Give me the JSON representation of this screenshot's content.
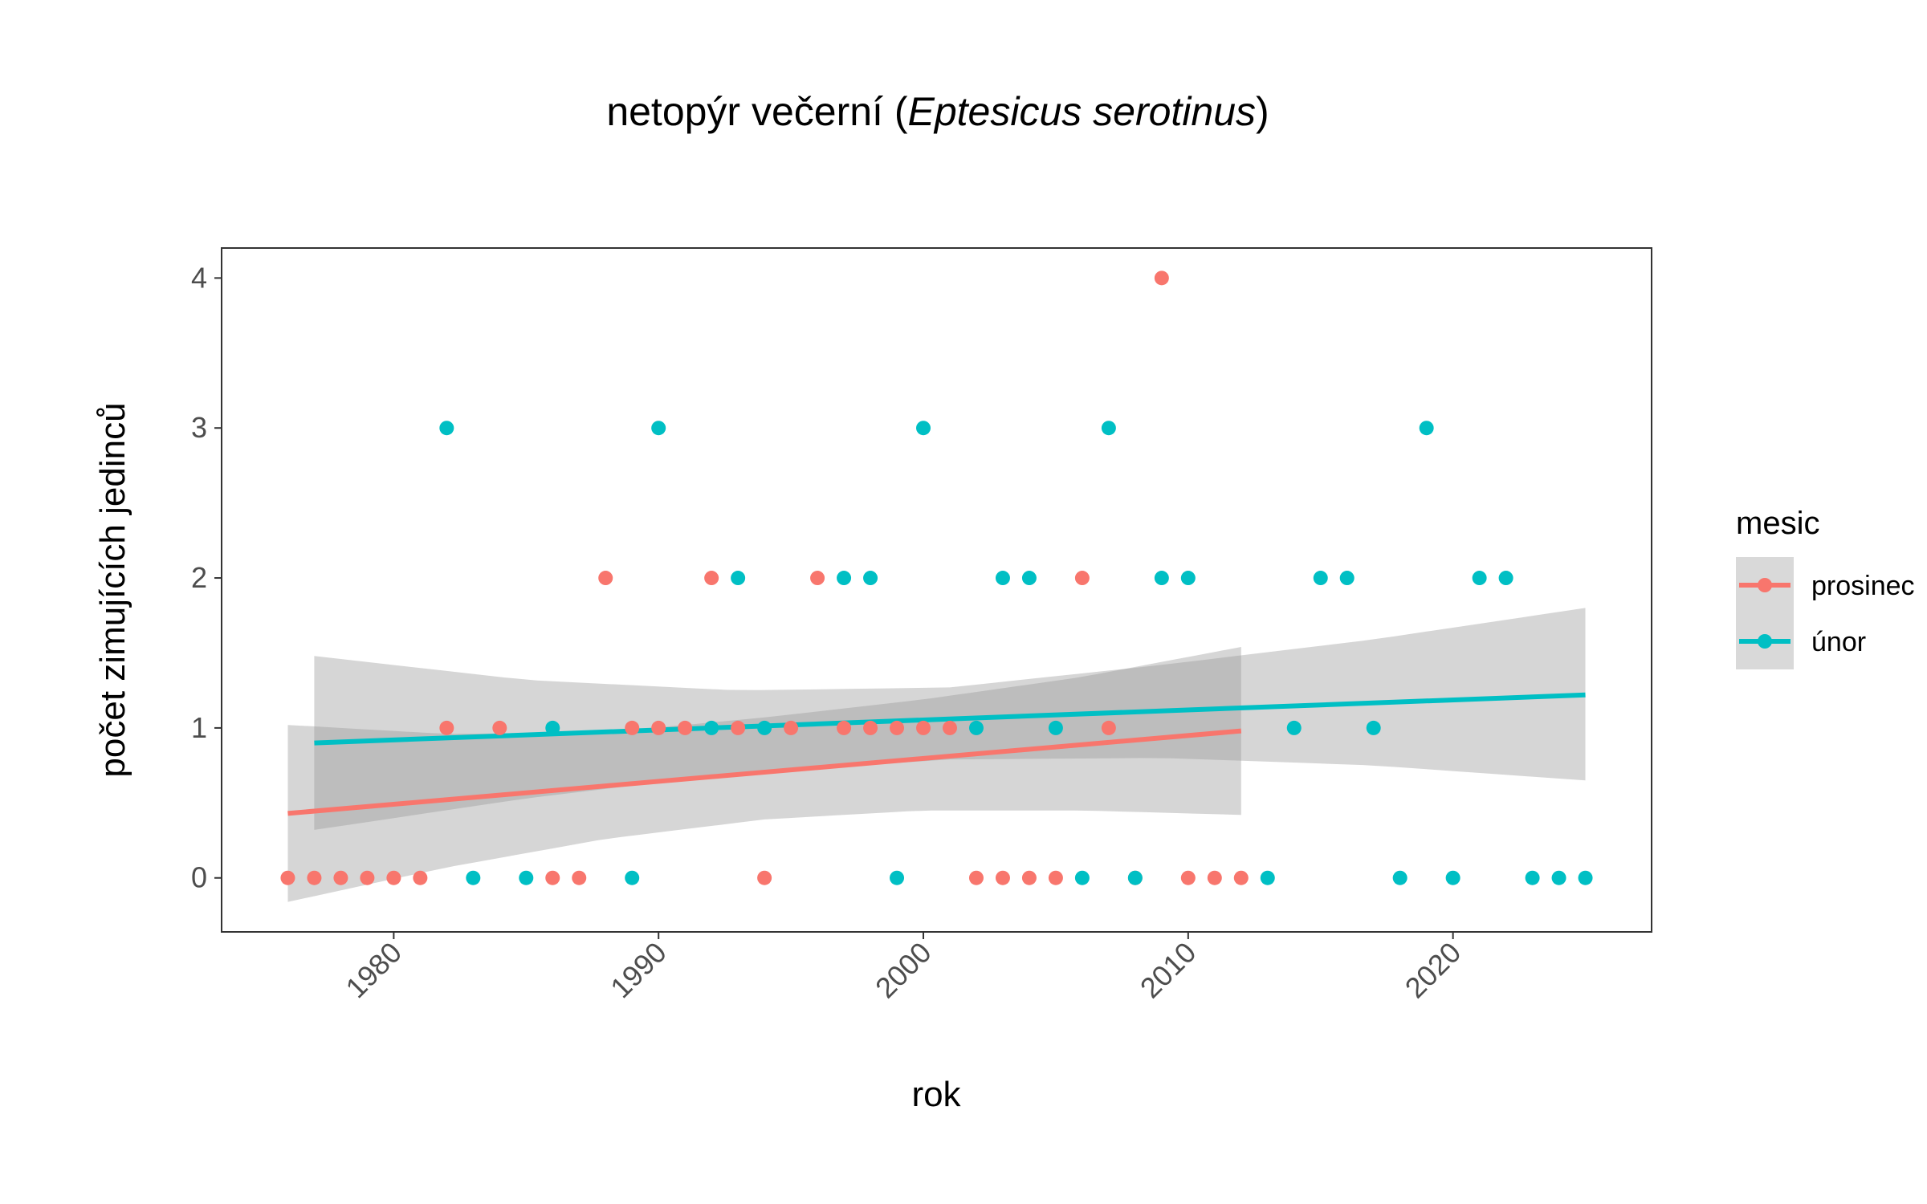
{
  "chart_data": {
    "type": "scatter",
    "title": {
      "prefix": "netopýr večerní (",
      "italic": "Eptesicus serotinus",
      "suffix": ")"
    },
    "xlabel": "rok",
    "ylabel": "počet zimujících jedinců",
    "xlim": [
      1973.5,
      2027.5
    ],
    "ylim": [
      -0.36,
      4.2
    ],
    "xticks": [
      1980,
      1990,
      2000,
      2010,
      2020
    ],
    "yticks": [
      0,
      1,
      2,
      3,
      4
    ],
    "grid": false,
    "legend": {
      "title": "mesic",
      "placement": "right"
    },
    "series": [
      {
        "name": "prosinec",
        "color": "#F8766D",
        "points": [
          [
            1976,
            0
          ],
          [
            1977,
            0
          ],
          [
            1978,
            0
          ],
          [
            1979,
            0
          ],
          [
            1980,
            0
          ],
          [
            1981,
            0
          ],
          [
            1982,
            1
          ],
          [
            1984,
            1
          ],
          [
            1986,
            0
          ],
          [
            1987,
            0
          ],
          [
            1988,
            2
          ],
          [
            1989,
            1
          ],
          [
            1990,
            1
          ],
          [
            1991,
            1
          ],
          [
            1992,
            2
          ],
          [
            1993,
            1
          ],
          [
            1994,
            0
          ],
          [
            1995,
            1
          ],
          [
            1996,
            2
          ],
          [
            1997,
            1
          ],
          [
            1998,
            1
          ],
          [
            1999,
            1
          ],
          [
            2000,
            1
          ],
          [
            2001,
            1
          ],
          [
            2002,
            0
          ],
          [
            2003,
            0
          ],
          [
            2004,
            0
          ],
          [
            2005,
            0
          ],
          [
            2006,
            2
          ],
          [
            2007,
            1
          ],
          [
            2008,
            0
          ],
          [
            2009,
            4
          ],
          [
            2010,
            0
          ],
          [
            2011,
            0
          ],
          [
            2012,
            0
          ]
        ],
        "trend": {
          "x": [
            1976,
            2012
          ],
          "y": [
            0.43,
            0.98
          ]
        },
        "band": {
          "x": [
            1976,
            1982,
            1988,
            1994,
            2000,
            2006,
            2012
          ],
          "lower": [
            -0.16,
            0.07,
            0.26,
            0.39,
            0.45,
            0.45,
            0.42
          ],
          "upper": [
            1.02,
            0.96,
            0.97,
            1.07,
            1.19,
            1.34,
            1.54
          ]
        }
      },
      {
        "name": "únor",
        "color": "#00BFC4",
        "points": [
          [
            1982,
            3
          ],
          [
            1983,
            0
          ],
          [
            1985,
            0
          ],
          [
            1986,
            1
          ],
          [
            1989,
            0
          ],
          [
            1990,
            3
          ],
          [
            1992,
            1
          ],
          [
            1993,
            2
          ],
          [
            1994,
            1
          ],
          [
            1997,
            2
          ],
          [
            1998,
            2
          ],
          [
            1999,
            0
          ],
          [
            2000,
            3
          ],
          [
            2002,
            1
          ],
          [
            2003,
            2
          ],
          [
            2004,
            2
          ],
          [
            2005,
            1
          ],
          [
            2006,
            0
          ],
          [
            2007,
            3
          ],
          [
            2008,
            0
          ],
          [
            2009,
            2
          ],
          [
            2010,
            2
          ],
          [
            2013,
            0
          ],
          [
            2014,
            1
          ],
          [
            2015,
            2
          ],
          [
            2016,
            2
          ],
          [
            2017,
            1
          ],
          [
            2018,
            0
          ],
          [
            2019,
            3
          ],
          [
            2020,
            0
          ],
          [
            2021,
            2
          ],
          [
            2022,
            2
          ],
          [
            2023,
            0
          ],
          [
            2024,
            0
          ],
          [
            2025,
            0
          ]
        ],
        "trend": {
          "x": [
            1977,
            2025
          ],
          "y": [
            0.9,
            1.22
          ]
        },
        "band": {
          "x": [
            1977,
            1985,
            1993,
            2001,
            2009,
            2017,
            2025
          ],
          "lower": [
            0.32,
            0.53,
            0.7,
            0.79,
            0.8,
            0.75,
            0.65
          ],
          "upper": [
            1.48,
            1.32,
            1.25,
            1.27,
            1.42,
            1.59,
            1.8
          ]
        }
      }
    ]
  }
}
